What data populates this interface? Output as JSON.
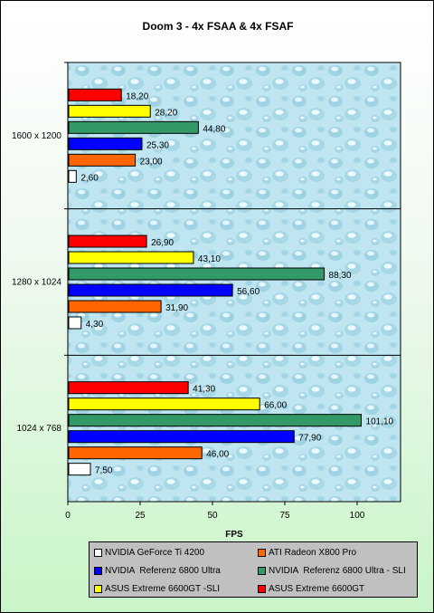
{
  "chart_data": {
    "type": "bar",
    "orientation": "horizontal",
    "title": "Doom 3 - 4x FSAA & 4x FSAF",
    "xlabel": "FPS",
    "ylabel": "",
    "xlim": [
      0,
      115
    ],
    "xticks": [
      0,
      25,
      50,
      75,
      100
    ],
    "grid": false,
    "legend_position": "bottom",
    "categories": [
      "1600 x 1200",
      "1280 x 1024",
      "1024 x 768"
    ],
    "series": [
      {
        "name": "NVIDIA GeForce Ti 4200",
        "color": "#ffffff",
        "values": [
          2.6,
          4.3,
          7.5
        ],
        "labels": [
          "2,60",
          "4,30",
          "7,50"
        ]
      },
      {
        "name": "ATI Radeon X800 Pro",
        "color": "#ff6600",
        "values": [
          23.0,
          31.9,
          46.0
        ],
        "labels": [
          "23,00",
          "31,90",
          "46,00"
        ]
      },
      {
        "name": "NVIDIA  Referenz 6800 Ultra",
        "color": "#0000ff",
        "values": [
          25.3,
          56.6,
          77.9
        ],
        "labels": [
          "25,30",
          "56,60",
          "77,90"
        ]
      },
      {
        "name": "NVIDIA  Referenz 6800 Ultra - SLI",
        "color": "#339966",
        "values": [
          44.8,
          88.3,
          101.1
        ],
        "labels": [
          "44,80",
          "88,30",
          "101,10"
        ]
      },
      {
        "name": "ASUS Extreme 6600GT -SLI",
        "color": "#ffff00",
        "values": [
          28.2,
          43.1,
          66.0
        ],
        "labels": [
          "28,20",
          "43,10",
          "66,00"
        ]
      },
      {
        "name": "ASUS Extreme 6600GT",
        "color": "#ff0000",
        "values": [
          18.2,
          26.9,
          41.3
        ],
        "labels": [
          "18,20",
          "26,90",
          "41,30"
        ]
      }
    ],
    "legend_order": [
      0,
      1,
      2,
      3,
      4,
      5
    ],
    "colors": {
      "plot_background": "#bfe6f0",
      "page_background": "#ffffff",
      "legend_background": "#c0c0c0"
    }
  }
}
